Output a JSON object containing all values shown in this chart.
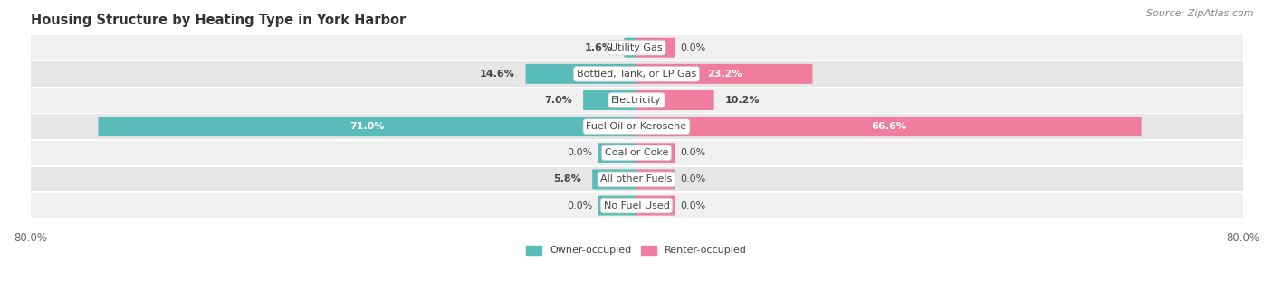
{
  "title": "Housing Structure by Heating Type in York Harbor",
  "source": "Source: ZipAtlas.com",
  "categories": [
    "Utility Gas",
    "Bottled, Tank, or LP Gas",
    "Electricity",
    "Fuel Oil or Kerosene",
    "Coal or Coke",
    "All other Fuels",
    "No Fuel Used"
  ],
  "owner_values": [
    1.6,
    14.6,
    7.0,
    71.0,
    0.0,
    5.8,
    0.0
  ],
  "renter_values": [
    0.0,
    23.2,
    10.2,
    66.6,
    0.0,
    0.0,
    0.0
  ],
  "owner_color": "#5abcb9",
  "renter_color": "#f07ca0",
  "row_bg_odd": "#f0f0f0",
  "row_bg_even": "#e6e6e6",
  "axis_min": -80.0,
  "axis_max": 80.0,
  "stub_size": 5.0,
  "legend_owner": "Owner-occupied",
  "legend_renter": "Renter-occupied",
  "title_fontsize": 10.5,
  "label_fontsize": 8,
  "value_fontsize": 8,
  "tick_fontsize": 8.5,
  "source_fontsize": 8
}
